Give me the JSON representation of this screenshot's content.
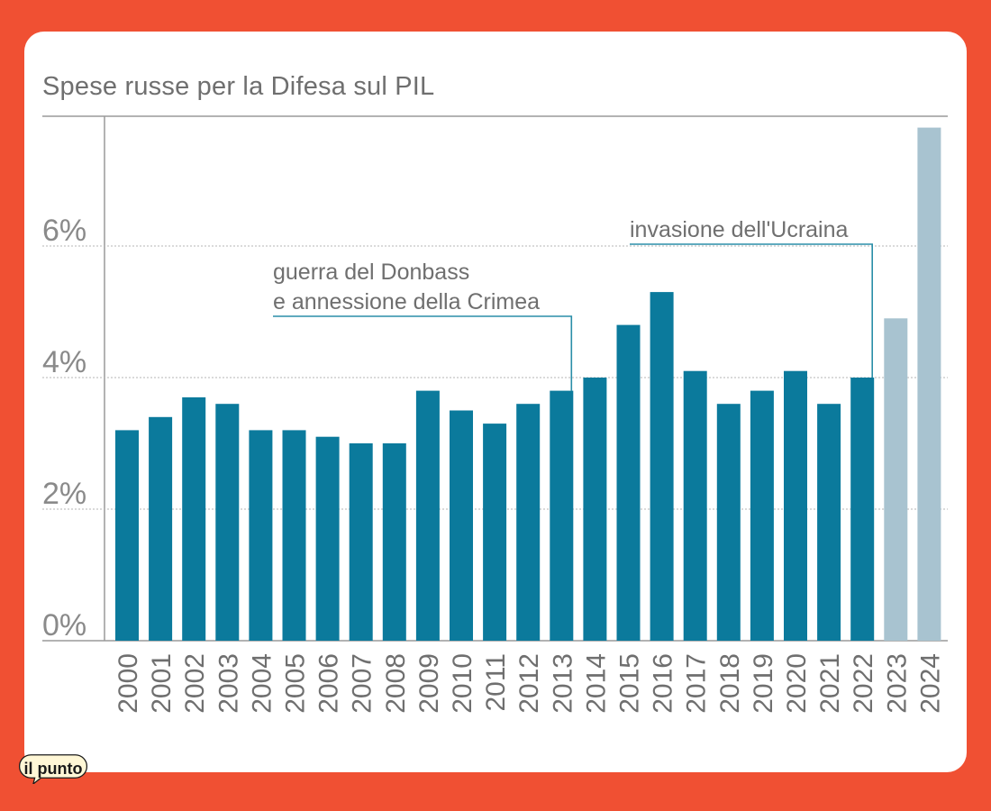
{
  "brand": {
    "logo_text": "il punto",
    "background": "#f05033"
  },
  "chart_data": {
    "type": "bar",
    "title": "Spese russe per la Difesa sul PIL",
    "xlabel": "",
    "ylabel": "",
    "ylim": [
      0,
      8
    ],
    "yticks": [
      0,
      2,
      4,
      6
    ],
    "ytick_labels": [
      "0%",
      "2%",
      "4%",
      "6%"
    ],
    "categories": [
      "2000",
      "2001",
      "2002",
      "2003",
      "2004",
      "2005",
      "2006",
      "2007",
      "2008",
      "2009",
      "2010",
      "2011",
      "2012",
      "2013",
      "2014",
      "2015",
      "2016",
      "2017",
      "2018",
      "2019",
      "2020",
      "2021",
      "2022",
      "2023",
      "2024"
    ],
    "values": [
      3.2,
      3.4,
      3.7,
      3.6,
      3.2,
      3.2,
      3.1,
      3.0,
      3.0,
      3.8,
      3.5,
      3.3,
      3.6,
      3.8,
      4.0,
      4.8,
      5.3,
      4.1,
      3.6,
      3.8,
      4.1,
      3.6,
      4.0,
      4.9,
      7.8
    ],
    "colors": {
      "actual": "#0b7a9c",
      "estimate": "#a8c3d0"
    },
    "estimate_categories": [
      "2023",
      "2024"
    ],
    "grid": true,
    "annotations": [
      {
        "lines": [
          "guerra del Donbass",
          "e annessione della Crimea"
        ],
        "category": "2013"
      },
      {
        "lines": [
          "invasione dell'Ucraina"
        ],
        "category": "2022"
      }
    ]
  }
}
